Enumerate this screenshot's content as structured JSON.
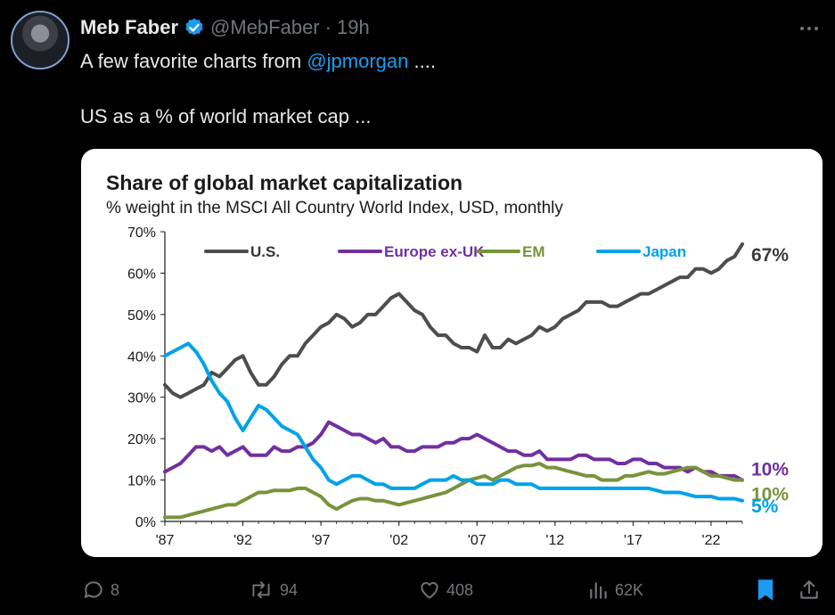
{
  "tweet": {
    "display_name": "Meb Faber",
    "handle": "@MebFaber",
    "separator": "·",
    "time": "19h",
    "line1_prefix": "A few favorite charts from ",
    "line1_mention": "@jpmorgan",
    "line1_suffix": " ....",
    "line2": "US as a % of world market cap ...",
    "colors": {
      "mention": "#1d9bf0",
      "verified": "#1d9bf0",
      "muted": "#71767b",
      "bookmark_active": "#1d9bf0"
    }
  },
  "actions": {
    "replies": "8",
    "reposts": "94",
    "likes": "408",
    "views": "62K"
  },
  "chart_data": {
    "type": "line",
    "title": "Share of global market capitalization",
    "subtitle": "% weight in the MSCI All Country World Index, USD, monthly",
    "xlabel": "",
    "ylabel": "",
    "x_ticks": [
      "'87",
      "'92",
      "'97",
      "'02",
      "'07",
      "'12",
      "'17",
      "'22"
    ],
    "y_ticks": [
      "70%",
      "60%",
      "50%",
      "40%",
      "30%",
      "20%",
      "10%",
      "0%"
    ],
    "ylim": [
      0,
      70
    ],
    "xlim": [
      1987,
      2024
    ],
    "grid": false,
    "legend": "top",
    "series": [
      {
        "name": "U.S.",
        "color": "#4d4d4d",
        "end_label": "67%",
        "x": [
          1987,
          1987.5,
          1988,
          1988.5,
          1989,
          1989.5,
          1990,
          1990.5,
          1991,
          1991.5,
          1992,
          1992.5,
          1993,
          1993.5,
          1994,
          1994.5,
          1995,
          1995.5,
          1996,
          1996.5,
          1997,
          1997.5,
          1998,
          1998.5,
          1999,
          1999.5,
          2000,
          2000.5,
          2001,
          2001.5,
          2002,
          2002.5,
          2003,
          2003.5,
          2004,
          2004.5,
          2005,
          2005.5,
          2006,
          2006.5,
          2007,
          2007.5,
          2008,
          2008.5,
          2009,
          2009.5,
          2010,
          2010.5,
          2011,
          2011.5,
          2012,
          2012.5,
          2013,
          2013.5,
          2014,
          2014.5,
          2015,
          2015.5,
          2016,
          2016.5,
          2017,
          2017.5,
          2018,
          2018.5,
          2019,
          2019.5,
          2020,
          2020.5,
          2021,
          2021.5,
          2022,
          2022.5,
          2023,
          2023.5,
          2024
        ],
        "values": [
          33,
          31,
          30,
          31,
          32,
          33,
          36,
          35,
          37,
          39,
          40,
          36,
          33,
          33,
          35,
          38,
          40,
          40,
          43,
          45,
          47,
          48,
          50,
          49,
          47,
          48,
          50,
          50,
          52,
          54,
          55,
          53,
          51,
          50,
          47,
          45,
          45,
          43,
          42,
          42,
          41,
          45,
          42,
          42,
          44,
          43,
          44,
          45,
          47,
          46,
          47,
          49,
          50,
          51,
          53,
          53,
          53,
          52,
          52,
          53,
          54,
          55,
          55,
          56,
          57,
          58,
          59,
          59,
          61,
          61,
          60,
          61,
          63,
          64,
          67
        ]
      },
      {
        "name": "Europe ex-UK",
        "color": "#7030a0",
        "end_label": "10%",
        "x": [
          1987,
          1987.5,
          1988,
          1988.5,
          1989,
          1989.5,
          1990,
          1990.5,
          1991,
          1991.5,
          1992,
          1992.5,
          1993,
          1993.5,
          1994,
          1994.5,
          1995,
          1995.5,
          1996,
          1996.5,
          1997,
          1997.5,
          1998,
          1998.5,
          1999,
          1999.5,
          2000,
          2000.5,
          2001,
          2001.5,
          2002,
          2002.5,
          2003,
          2003.5,
          2004,
          2004.5,
          2005,
          2005.5,
          2006,
          2006.5,
          2007,
          2007.5,
          2008,
          2008.5,
          2009,
          2009.5,
          2010,
          2010.5,
          2011,
          2011.5,
          2012,
          2012.5,
          2013,
          2013.5,
          2014,
          2014.5,
          2015,
          2015.5,
          2016,
          2016.5,
          2017,
          2017.5,
          2018,
          2018.5,
          2019,
          2019.5,
          2020,
          2020.5,
          2021,
          2021.5,
          2022,
          2022.5,
          2023,
          2023.5,
          2024
        ],
        "values": [
          12,
          13,
          14,
          16,
          18,
          18,
          17,
          18,
          16,
          17,
          18,
          16,
          16,
          16,
          18,
          17,
          17,
          18,
          18,
          19,
          21,
          24,
          23,
          22,
          21,
          21,
          20,
          19,
          20,
          18,
          18,
          17,
          17,
          18,
          18,
          18,
          19,
          19,
          20,
          20,
          21,
          20,
          19,
          18,
          17,
          17,
          16,
          16,
          17,
          15,
          15,
          15,
          15,
          16,
          16,
          15,
          15,
          15,
          14,
          14,
          15,
          15,
          14,
          14,
          13,
          13,
          13,
          12,
          13,
          12,
          12,
          11,
          11,
          11,
          10
        ]
      },
      {
        "name": "EM",
        "color": "#77933c",
        "end_label": "10%",
        "x": [
          1987,
          1987.5,
          1988,
          1988.5,
          1989,
          1989.5,
          1990,
          1990.5,
          1991,
          1991.5,
          1992,
          1992.5,
          1993,
          1993.5,
          1994,
          1994.5,
          1995,
          1995.5,
          1996,
          1996.5,
          1997,
          1997.5,
          1998,
          1998.5,
          1999,
          1999.5,
          2000,
          2000.5,
          2001,
          2001.5,
          2002,
          2002.5,
          2003,
          2003.5,
          2004,
          2004.5,
          2005,
          2005.5,
          2006,
          2006.5,
          2007,
          2007.5,
          2008,
          2008.5,
          2009,
          2009.5,
          2010,
          2010.5,
          2011,
          2011.5,
          2012,
          2012.5,
          2013,
          2013.5,
          2014,
          2014.5,
          2015,
          2015.5,
          2016,
          2016.5,
          2017,
          2017.5,
          2018,
          2018.5,
          2019,
          2019.5,
          2020,
          2020.5,
          2021,
          2021.5,
          2022,
          2022.5,
          2023,
          2023.5,
          2024
        ],
        "values": [
          1,
          1,
          1,
          1.5,
          2,
          2.5,
          3,
          3.5,
          4,
          4,
          5,
          6,
          7,
          7,
          7.5,
          7.5,
          7.5,
          8,
          8,
          7,
          6,
          4,
          3,
          4,
          5,
          5.5,
          5.5,
          5,
          5,
          4.5,
          4,
          4.5,
          5,
          5.5,
          6,
          6.5,
          7,
          8,
          9,
          10,
          10.5,
          11,
          10,
          11,
          12,
          13,
          13.5,
          13.5,
          14,
          13,
          13,
          12.5,
          12,
          11.5,
          11,
          11,
          10,
          10,
          10,
          11,
          11,
          11.5,
          12,
          11.5,
          11.5,
          12,
          12.5,
          13,
          13,
          12,
          11,
          11,
          10.5,
          10,
          10
        ]
      },
      {
        "name": "Japan",
        "color": "#00a2e8",
        "end_label": "5%",
        "x": [
          1987,
          1987.5,
          1988,
          1988.5,
          1989,
          1989.5,
          1990,
          1990.5,
          1991,
          1991.5,
          1992,
          1992.5,
          1993,
          1993.5,
          1994,
          1994.5,
          1995,
          1995.5,
          1996,
          1996.5,
          1997,
          1997.5,
          1998,
          1998.5,
          1999,
          1999.5,
          2000,
          2000.5,
          2001,
          2001.5,
          2002,
          2002.5,
          2003,
          2003.5,
          2004,
          2004.5,
          2005,
          2005.5,
          2006,
          2006.5,
          2007,
          2007.5,
          2008,
          2008.5,
          2009,
          2009.5,
          2010,
          2010.5,
          2011,
          2011.5,
          2012,
          2012.5,
          2013,
          2013.5,
          2014,
          2014.5,
          2015,
          2015.5,
          2016,
          2016.5,
          2017,
          2017.5,
          2018,
          2018.5,
          2019,
          2019.5,
          2020,
          2020.5,
          2021,
          2021.5,
          2022,
          2022.5,
          2023,
          2023.5,
          2024
        ],
        "values": [
          40,
          41,
          42,
          43,
          41,
          38,
          34,
          31,
          29,
          25,
          22,
          25,
          28,
          27,
          25,
          23,
          22,
          21,
          18,
          15,
          13,
          10,
          9,
          10,
          11,
          11,
          10,
          9,
          9,
          8,
          8,
          8,
          8,
          9,
          10,
          10,
          10,
          11,
          10,
          10,
          9,
          9,
          9,
          10,
          10,
          9,
          9,
          9,
          8,
          8,
          8,
          8,
          8,
          8,
          8,
          8,
          8,
          8,
          8,
          8,
          8,
          8,
          8,
          7.5,
          7,
          7,
          7,
          6.5,
          6,
          6,
          6,
          5.5,
          5.5,
          5.5,
          5
        ]
      }
    ]
  }
}
